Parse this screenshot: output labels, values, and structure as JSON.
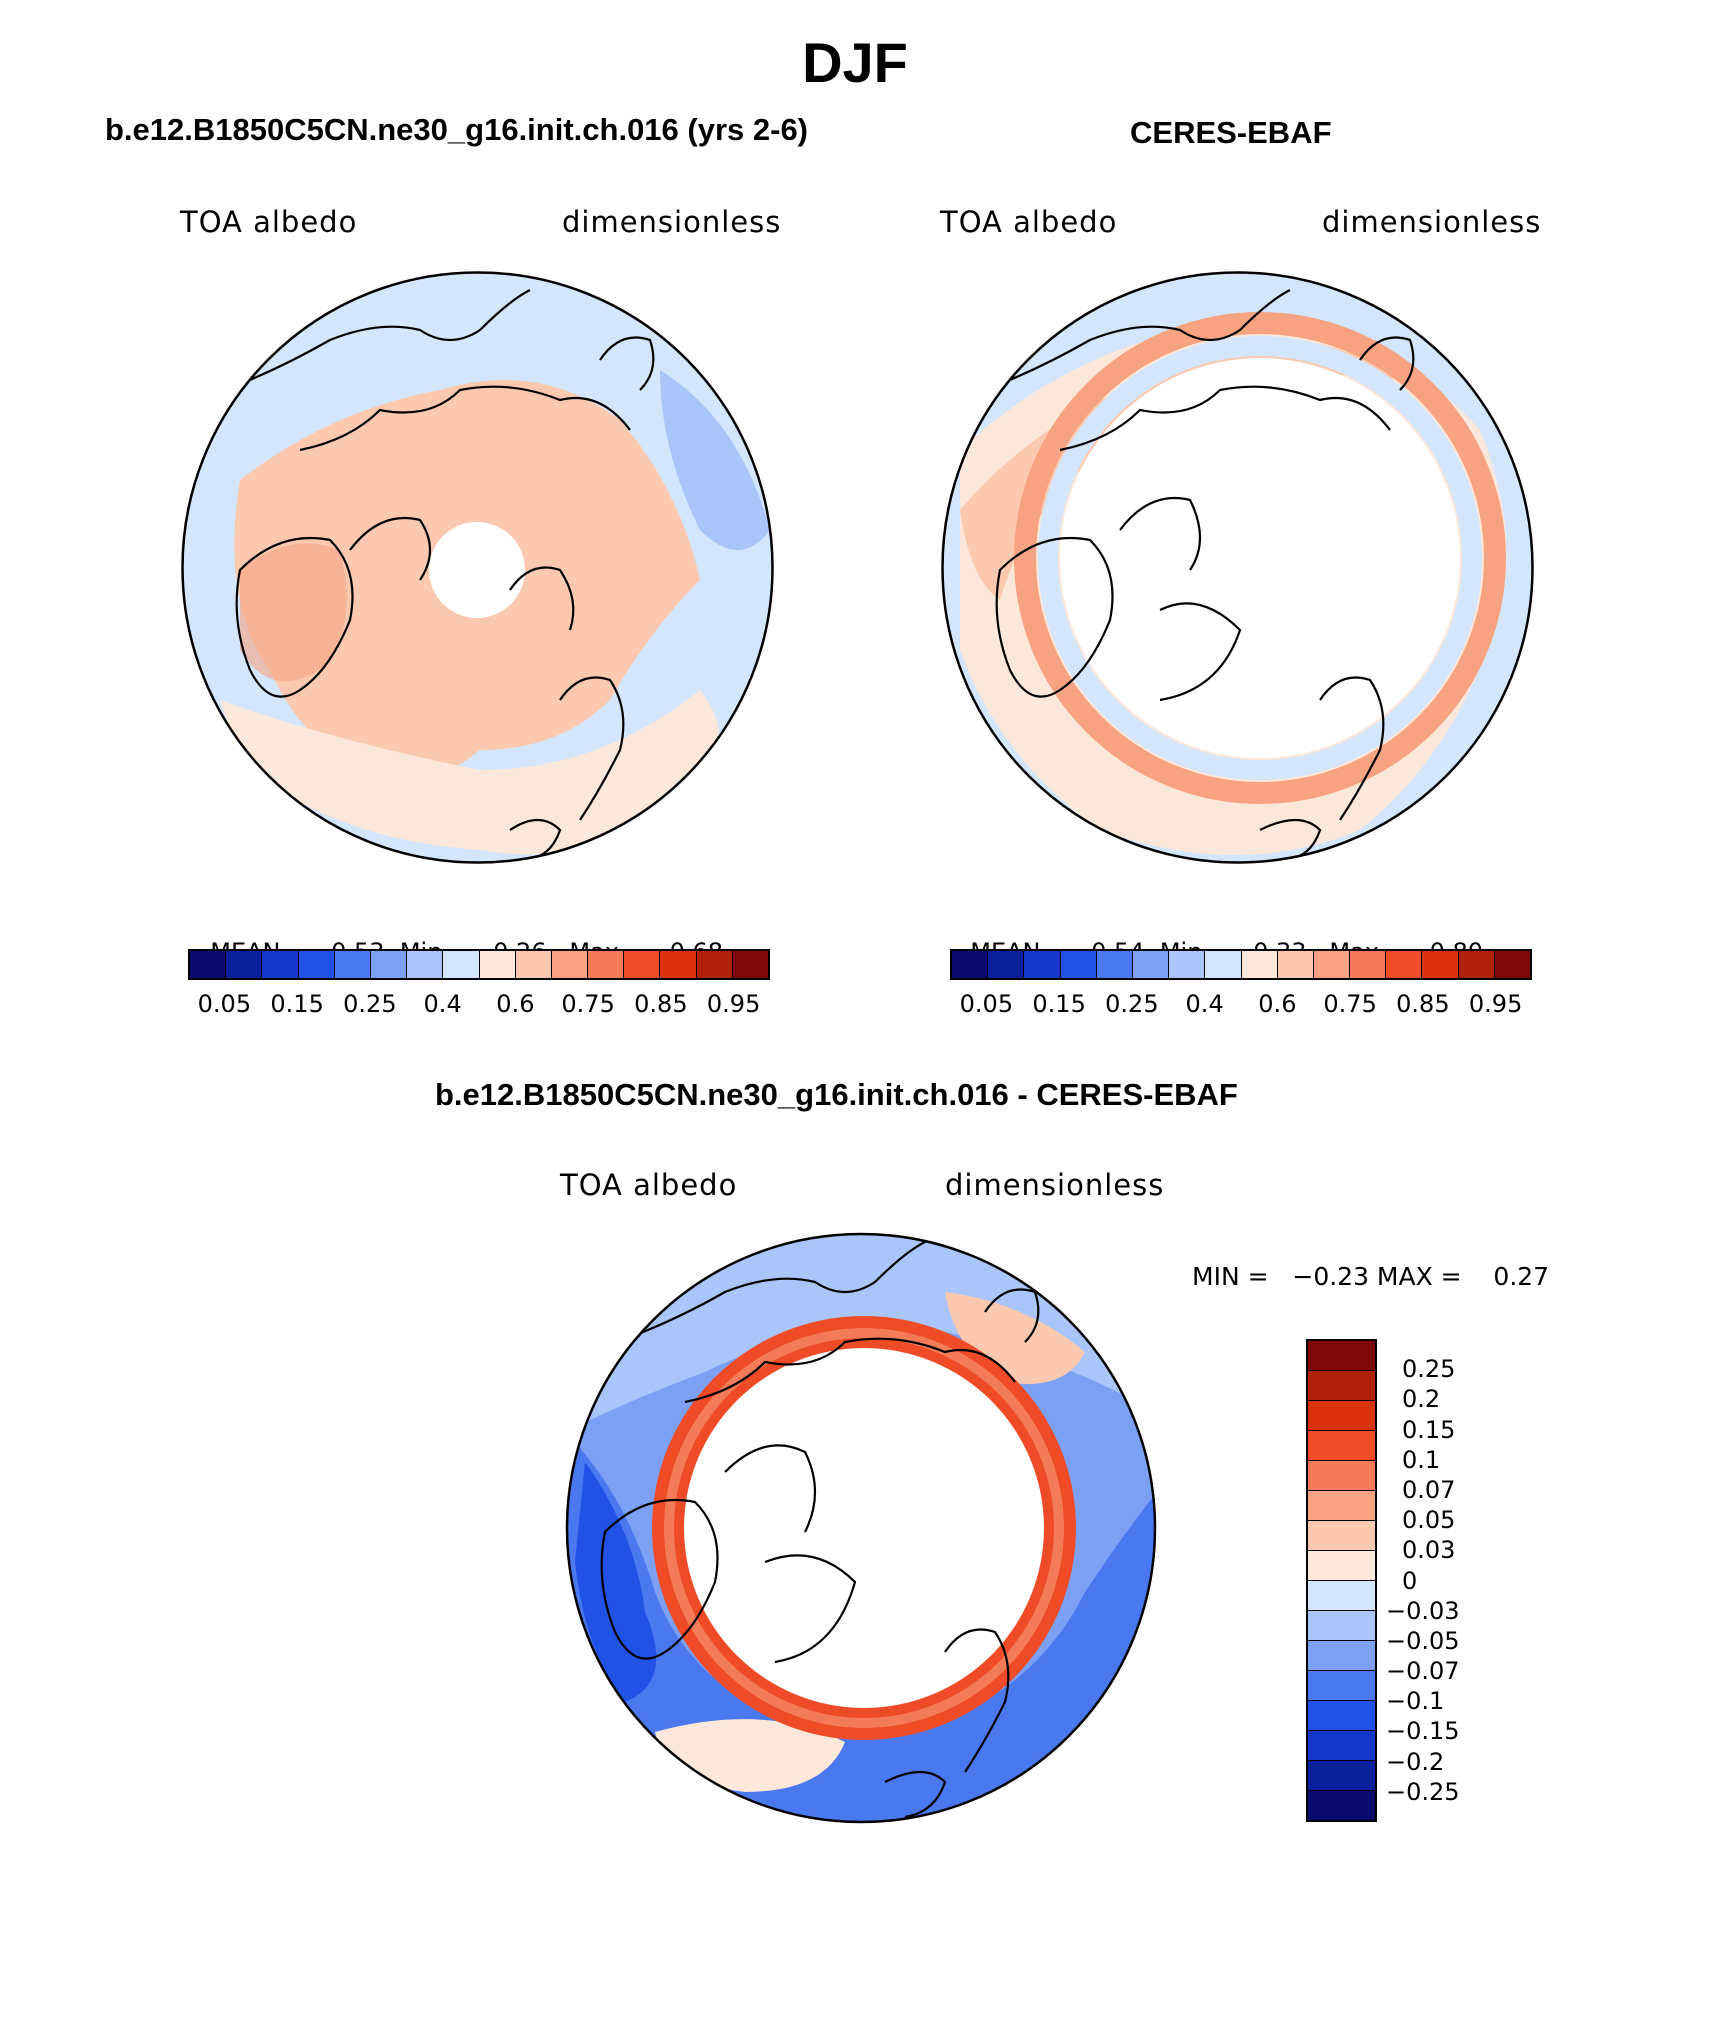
{
  "figure_title": "DJF",
  "panels": {
    "model": {
      "title": "b.e12.B1850C5CN.ne30_g16.init.ch.016 (yrs 2-6)",
      "left_label": "TOA albedo",
      "right_label": "dimensionless",
      "stats": {
        "mean_label": "MEAN=",
        "mean": "0.53",
        "min_label": "Min=",
        "min": "0.26",
        "max_label": "Max=",
        "max": "0.68"
      }
    },
    "obs": {
      "title": "CERES-EBAF",
      "left_label": "TOA albedo",
      "right_label": "dimensionless",
      "stats": {
        "mean_label": "MEAN=",
        "mean": "0.54",
        "min_label": "Min=",
        "min": "0.33",
        "max_label": "Max=",
        "max": "0.80"
      }
    },
    "diff": {
      "title": "b.e12.B1850C5CN.ne30_g16.init.ch.016 - CERES-EBAF",
      "left_label": "TOA albedo",
      "right_label": "dimensionless",
      "minmax": "MIN =   −0.23 MAX =    0.27"
    }
  },
  "colorbar_abs": {
    "colors": [
      "#0a0a6e",
      "#0a1f9c",
      "#1537c9",
      "#2152e6",
      "#4a78ef",
      "#7ba0f4",
      "#a9c5f9",
      "#d3e6fb",
      "#fce8da",
      "#fbc9b0",
      "#f7a382",
      "#f47b57",
      "#ef4b26",
      "#d9320c",
      "#b0220a",
      "#7e0707"
    ],
    "labels": [
      "0.05",
      "0.15",
      "0.25",
      "0.4",
      "0.6",
      "0.75",
      "0.85",
      "0.95"
    ]
  },
  "colorbar_diff": {
    "colors": [
      "#7e0707",
      "#b0220a",
      "#d9320c",
      "#ef4b26",
      "#f47b57",
      "#f7a382",
      "#fbc9b0",
      "#fce8da",
      "#d3e6fb",
      "#a9c5f9",
      "#7ba0f4",
      "#4a78ef",
      "#2152e6",
      "#1537c9",
      "#0a1f9c",
      "#0a0a6e"
    ],
    "labels": [
      "0.25",
      "0.2",
      "0.15",
      "0.1",
      "0.07",
      "0.05",
      "0.03",
      "0",
      "−0.03",
      "−0.05",
      "−0.07",
      "−0.1",
      "−0.15",
      "−0.2",
      "−0.25"
    ]
  },
  "map_colors": {
    "ocean_light": "#d3e6fb",
    "land_warm": "#fbc9b0",
    "warm_light": "#fce8da",
    "warm_mid": "#f7a382",
    "ring_red": "#ef4b26",
    "blue_mid": "#4a78ef",
    "blue_light": "#a9c5f9",
    "no_data": "#ffffff"
  }
}
